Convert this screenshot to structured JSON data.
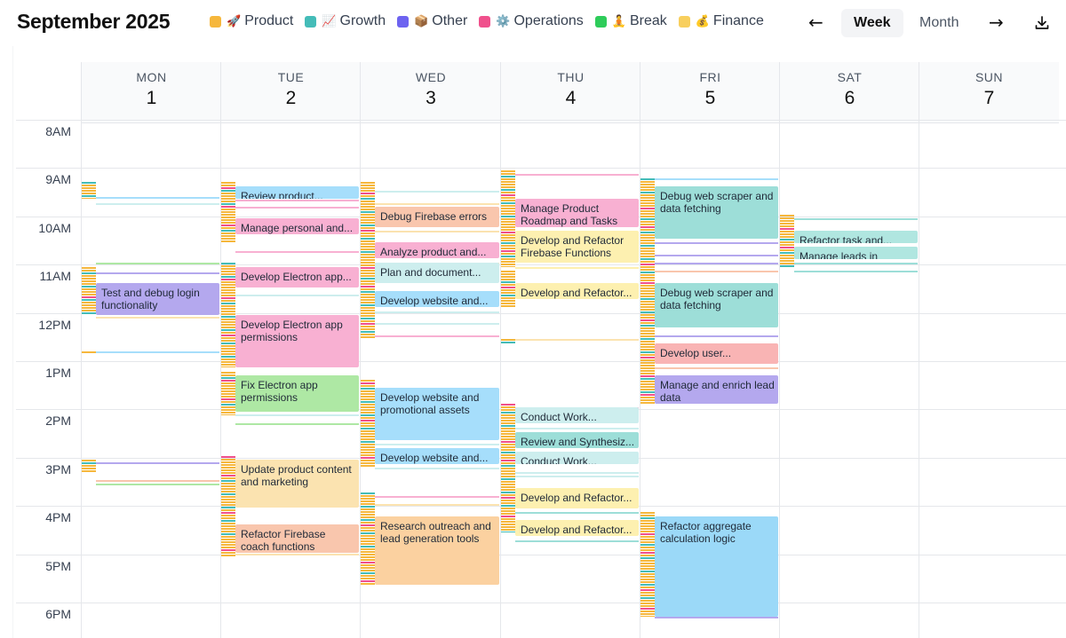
{
  "header": {
    "title": "September 2025",
    "legend": [
      {
        "label": "Product",
        "emoji": "🚀",
        "color": "#f6b73c",
        "icon": "rocket-icon"
      },
      {
        "label": "Growth",
        "emoji": "📈",
        "color": "#44bcb8",
        "icon": "chart-icon"
      },
      {
        "label": "Other",
        "emoji": "📦",
        "color": "#6d63f0",
        "icon": "box-icon"
      },
      {
        "label": "Operations",
        "emoji": "⚙️",
        "color": "#f0508c",
        "icon": "gear-icon"
      },
      {
        "label": "Break",
        "emoji": "🧘",
        "color": "#2ecc5a",
        "icon": "meditation-icon"
      },
      {
        "label": "Finance",
        "emoji": "💰",
        "color": "#f8cf5d",
        "icon": "moneybag-icon"
      }
    ],
    "prev_arrow": "←",
    "next_arrow": "→",
    "views": {
      "week": "Week",
      "month": "Month"
    },
    "active_view": "Week"
  },
  "days": [
    {
      "dow": "MON",
      "num": "1"
    },
    {
      "dow": "TUE",
      "num": "2"
    },
    {
      "dow": "WED",
      "num": "3"
    },
    {
      "dow": "THU",
      "num": "4"
    },
    {
      "dow": "FRI",
      "num": "5"
    },
    {
      "dow": "SAT",
      "num": "6"
    },
    {
      "dow": "SUN",
      "num": "7"
    }
  ],
  "hours": [
    "8AM",
    "9AM",
    "10AM",
    "11AM",
    "12PM",
    "1PM",
    "2PM",
    "3PM",
    "4PM",
    "5PM",
    "6PM"
  ],
  "events": [
    {
      "day": 0,
      "title": "Test and debug login functionality",
      "start": "11:15",
      "end": "11:55",
      "color": "#b4a8ee"
    },
    {
      "day": 1,
      "title": "Review product...",
      "start": "9:15",
      "end": "9:30",
      "color": "#a6defb"
    },
    {
      "day": 1,
      "title": "Manage personal and...",
      "start": "9:55",
      "end": "10:15",
      "color": "#f8b0d2"
    },
    {
      "day": 1,
      "title": "Develop Electron app...",
      "start": "10:55",
      "end": "11:20",
      "color": "#f8b0d2"
    },
    {
      "day": 1,
      "title": "Develop Electron app permissions",
      "start": "11:55",
      "end": "1:00",
      "color": "#f8b0d2"
    },
    {
      "day": 1,
      "title": "Fix Electron app permissions",
      "start": "1:10",
      "end": "1:55",
      "color": "#aee8a4"
    },
    {
      "day": 1,
      "title": "Update product content and marketing",
      "start": "2:55",
      "end": "3:55",
      "color": "#fbe3b0"
    },
    {
      "day": 1,
      "title": "Refactor Firebase coach functions",
      "start": "4:15",
      "end": "4:50",
      "color": "#f9c6ad"
    },
    {
      "day": 2,
      "title": "Debug Firebase errors",
      "start": "9:40",
      "end": "10:05",
      "color": "#f9c6ad"
    },
    {
      "day": 2,
      "title": "Analyze product and...",
      "start": "10:25",
      "end": "10:45",
      "color": "#f8b0d2"
    },
    {
      "day": 2,
      "title": "Plan and document...",
      "start": "10:50",
      "end": "11:15",
      "color": "#cdeeee"
    },
    {
      "day": 2,
      "title": "Develop website and...",
      "start": "11:25",
      "end": "11:45",
      "color": "#a6defb"
    },
    {
      "day": 2,
      "title": "Develop website and promotional assets",
      "start": "1:25",
      "end": "2:30",
      "color": "#a6defb"
    },
    {
      "day": 2,
      "title": "Develop website and...",
      "start": "2:40",
      "end": "3:00",
      "color": "#a6defb"
    },
    {
      "day": 2,
      "title": "Research outreach and lead generation tools",
      "start": "4:05",
      "end": "5:30",
      "color": "#fbd1a0"
    },
    {
      "day": 3,
      "title": "Manage Product Roadmap and Tasks",
      "start": "9:30",
      "end": "10:05",
      "color": "#f8b0d2"
    },
    {
      "day": 3,
      "title": "Develop and Refactor Firebase Functions",
      "start": "10:10",
      "end": "10:50",
      "color": "#fdf0b0"
    },
    {
      "day": 3,
      "title": "Develop and Refactor...",
      "start": "11:15",
      "end": "11:35",
      "color": "#fdf0b0"
    },
    {
      "day": 3,
      "title": "Conduct Work...",
      "start": "1:50",
      "end": "2:10",
      "color": "#cdeeee"
    },
    {
      "day": 3,
      "title": "Review and Synthesiz...",
      "start": "2:20",
      "end": "2:40",
      "color": "#9dded8"
    },
    {
      "day": 3,
      "title": "Conduct Work...",
      "start": "2:45",
      "end": "3:00",
      "color": "#cdeeee"
    },
    {
      "day": 3,
      "title": "Develop and Refactor...",
      "start": "3:30",
      "end": "3:55",
      "color": "#fdf0b0"
    },
    {
      "day": 3,
      "title": "Develop and Refactor...",
      "start": "4:10",
      "end": "4:30",
      "color": "#fdf0b0"
    },
    {
      "day": 4,
      "title": "Debug web scraper and data fetching",
      "start": "9:15",
      "end": "10:20",
      "color": "#9dded8"
    },
    {
      "day": 4,
      "title": "Debug web scraper and data fetching",
      "start": "11:15",
      "end": "12:10",
      "color": "#9dded8"
    },
    {
      "day": 4,
      "title": "Develop user...",
      "start": "12:30",
      "end": "12:55",
      "color": "#f9b4b4"
    },
    {
      "day": 4,
      "title": "Manage and enrich lead data",
      "start": "1:10",
      "end": "1:45",
      "color": "#b4a8ee"
    },
    {
      "day": 4,
      "title": "Refactor aggregate calculation logic",
      "start": "4:05",
      "end": "6:10",
      "color": "#9bd9f8"
    },
    {
      "day": 5,
      "title": "Refactor task and...",
      "start": "10:10",
      "end": "10:25",
      "color": "#b0e6e0"
    },
    {
      "day": 5,
      "title": "Manage leads in Lemlist",
      "start": "10:30",
      "end": "10:45",
      "color": "#b0e6e0"
    }
  ]
}
